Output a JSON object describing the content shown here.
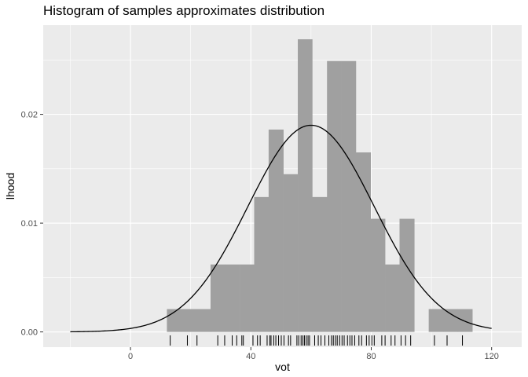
{
  "chart_data": {
    "type": "bar",
    "title": "Histogram of samples approximates distribution",
    "xlabel": "vot",
    "ylabel": "lhood",
    "xlim": [
      -29,
      130
    ],
    "ylim": [
      -0.0014,
      0.0282
    ],
    "x_ticks": [
      0,
      40,
      80,
      120
    ],
    "x_tick_labels": [
      "0",
      "40",
      "80",
      "120"
    ],
    "y_ticks": [
      0.0,
      0.01,
      0.02
    ],
    "y_tick_labels": [
      "0.00",
      "0.01",
      "0.02"
    ],
    "grid": true,
    "colors": {
      "panel": "#ebebeb",
      "grid": "#ffffff",
      "bar": "#a0a0a0",
      "curve": "#000000",
      "rug": "#000000"
    },
    "histogram": {
      "bins": [
        {
          "x0": 12.1,
          "x1": 16.9,
          "density": 0.0021
        },
        {
          "x0": 16.9,
          "x1": 21.8,
          "density": 0.0021
        },
        {
          "x0": 21.8,
          "x1": 26.6,
          "density": 0.0021
        },
        {
          "x0": 26.6,
          "x1": 31.4,
          "density": 0.0062
        },
        {
          "x0": 31.4,
          "x1": 36.3,
          "density": 0.0062
        },
        {
          "x0": 36.3,
          "x1": 41.1,
          "density": 0.0062
        },
        {
          "x0": 41.1,
          "x1": 45.9,
          "density": 0.0124
        },
        {
          "x0": 45.9,
          "x1": 50.8,
          "density": 0.0186
        },
        {
          "x0": 50.8,
          "x1": 55.6,
          "density": 0.0145
        },
        {
          "x0": 55.6,
          "x1": 60.4,
          "density": 0.0269
        },
        {
          "x0": 60.4,
          "x1": 65.3,
          "density": 0.0124
        },
        {
          "x0": 65.3,
          "x1": 70.1,
          "density": 0.0249
        },
        {
          "x0": 70.1,
          "x1": 74.9,
          "density": 0.0249
        },
        {
          "x0": 74.9,
          "x1": 79.8,
          "density": 0.0165
        },
        {
          "x0": 79.8,
          "x1": 84.6,
          "density": 0.0104
        },
        {
          "x0": 84.6,
          "x1": 89.4,
          "density": 0.0062
        },
        {
          "x0": 89.4,
          "x1": 94.3,
          "density": 0.0104
        },
        {
          "x0": 94.3,
          "x1": 99.1,
          "density": 0.0
        },
        {
          "x0": 99.1,
          "x1": 103.9,
          "density": 0.0021
        },
        {
          "x0": 103.9,
          "x1": 108.8,
          "density": 0.0021
        },
        {
          "x0": 108.8,
          "x1": 113.6,
          "density": 0.0021
        }
      ]
    },
    "density_curve": {
      "distribution": "normal",
      "mean": 60,
      "sd": 21,
      "x_range": [
        -20,
        120
      ]
    },
    "rug": [
      13.2,
      18.9,
      22.1,
      29.0,
      31.3,
      33.8,
      35.3,
      37.0,
      37.5,
      40.7,
      42.2,
      43.1,
      45.4,
      46.3,
      46.7,
      47.6,
      48.3,
      49.2,
      50.1,
      51.0,
      52.5,
      53.2,
      55.3,
      55.9,
      56.7,
      57.3,
      57.8,
      58.4,
      59.0,
      59.5,
      61.2,
      62.4,
      63.3,
      64.6,
      65.9,
      66.8,
      67.4,
      68.1,
      68.7,
      69.5,
      70.3,
      71.0,
      72.1,
      72.9,
      73.6,
      74.5,
      75.9,
      76.8,
      78.4,
      79.3,
      80.2,
      81.0,
      83.5,
      84.6,
      86.6,
      87.9,
      89.9,
      91.4,
      93.1,
      101.0,
      105.2,
      110.3
    ]
  }
}
